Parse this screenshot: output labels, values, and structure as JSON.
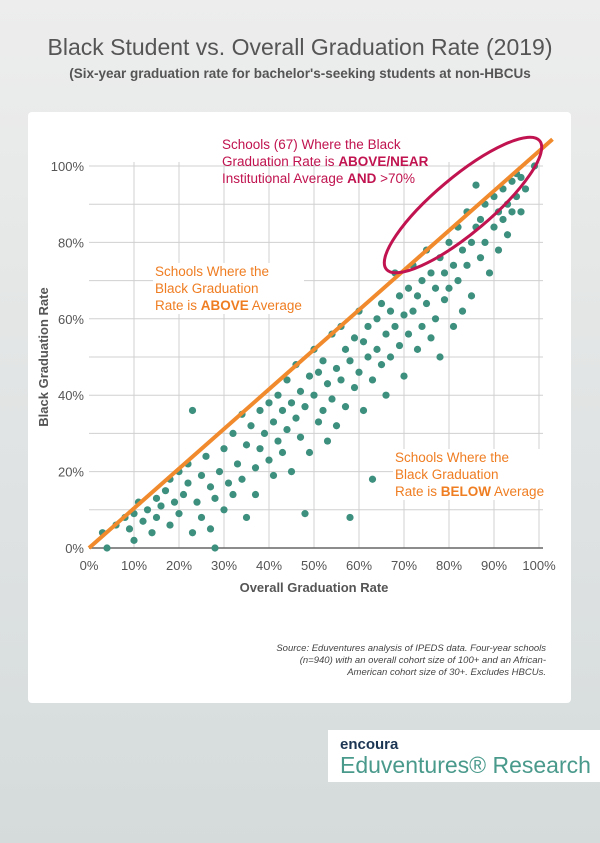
{
  "title": "Black Student vs. Overall Graduation Rate (2019)",
  "subtitle": "(Six-year graduation rate for bachelor's-seeking students at non-HBCUs",
  "annotations": {
    "top": [
      "Schools (67) Where the Black",
      "Graduation Rate is ",
      "ABOVE/NEAR",
      "Institutional Average ",
      "AND",
      " >70%"
    ],
    "above": [
      "Schools Where the",
      "Black Graduation",
      "Rate is ",
      "ABOVE",
      " Average"
    ],
    "below": [
      "Schools Where the",
      "Black Graduation",
      "Rate is ",
      "BELOW",
      " Average"
    ]
  },
  "source": "Source: Eduventures analysis of IPEDS data. Four-year schools (n=940) with an overall cohort size of 100+ and an African-American cohort size of 30+. Excludes HBCUs.",
  "logo": {
    "brand": "encoura",
    "name": "Eduventures® Research"
  },
  "colors": {
    "points": "#3d8f7e",
    "line": "#f08a2c",
    "ellipse": "#c0134f",
    "annotation_orange": "#ef7d22"
  },
  "chart_data": {
    "type": "scatter",
    "xlabel": "Overall Graduation Rate",
    "ylabel": "Black Graduation Rate",
    "xlim": [
      0,
      100
    ],
    "ylim": [
      0,
      100
    ],
    "xticks": [
      "0%",
      "10%",
      "20%",
      "30%",
      "40%",
      "50%",
      "60%",
      "70%",
      "80%",
      "90%",
      "100%"
    ],
    "yticks": [
      "0%",
      "20%",
      "40%",
      "60%",
      "80%",
      "100%"
    ],
    "grid": true,
    "reference_line": "y = x",
    "points": [
      [
        3,
        4
      ],
      [
        4,
        0
      ],
      [
        6,
        6
      ],
      [
        8,
        8
      ],
      [
        9,
        5
      ],
      [
        10,
        2
      ],
      [
        10,
        9
      ],
      [
        11,
        12
      ],
      [
        12,
        7
      ],
      [
        13,
        10
      ],
      [
        14,
        4
      ],
      [
        15,
        13
      ],
      [
        15,
        8
      ],
      [
        16,
        11
      ],
      [
        17,
        15
      ],
      [
        18,
        18
      ],
      [
        18,
        6
      ],
      [
        19,
        12
      ],
      [
        20,
        20
      ],
      [
        20,
        9
      ],
      [
        21,
        14
      ],
      [
        22,
        22
      ],
      [
        22,
        17
      ],
      [
        23,
        36
      ],
      [
        23,
        4
      ],
      [
        24,
        12
      ],
      [
        25,
        19
      ],
      [
        25,
        8
      ],
      [
        26,
        24
      ],
      [
        27,
        16
      ],
      [
        27,
        5
      ],
      [
        28,
        0
      ],
      [
        28,
        13
      ],
      [
        29,
        20
      ],
      [
        30,
        26
      ],
      [
        30,
        10
      ],
      [
        31,
        17
      ],
      [
        32,
        30
      ],
      [
        32,
        14
      ],
      [
        33,
        22
      ],
      [
        34,
        35
      ],
      [
        34,
        18
      ],
      [
        35,
        27
      ],
      [
        35,
        8
      ],
      [
        36,
        32
      ],
      [
        37,
        21
      ],
      [
        37,
        14
      ],
      [
        38,
        36
      ],
      [
        38,
        26
      ],
      [
        39,
        30
      ],
      [
        40,
        38
      ],
      [
        40,
        23
      ],
      [
        41,
        19
      ],
      [
        41,
        33
      ],
      [
        42,
        40
      ],
      [
        42,
        28
      ],
      [
        43,
        25
      ],
      [
        43,
        36
      ],
      [
        44,
        44
      ],
      [
        44,
        31
      ],
      [
        45,
        20
      ],
      [
        45,
        38
      ],
      [
        46,
        34
      ],
      [
        46,
        48
      ],
      [
        47,
        29
      ],
      [
        47,
        41
      ],
      [
        48,
        37
      ],
      [
        48,
        9
      ],
      [
        49,
        45
      ],
      [
        49,
        25
      ],
      [
        50,
        52
      ],
      [
        50,
        40
      ],
      [
        51,
        33
      ],
      [
        51,
        46
      ],
      [
        52,
        49
      ],
      [
        52,
        36
      ],
      [
        53,
        28
      ],
      [
        53,
        43
      ],
      [
        54,
        56
      ],
      [
        54,
        39
      ],
      [
        55,
        47
      ],
      [
        55,
        32
      ],
      [
        56,
        44
      ],
      [
        56,
        58
      ],
      [
        57,
        52
      ],
      [
        57,
        37
      ],
      [
        58,
        49
      ],
      [
        58,
        8
      ],
      [
        59,
        55
      ],
      [
        59,
        42
      ],
      [
        60,
        62
      ],
      [
        60,
        46
      ],
      [
        61,
        54
      ],
      [
        61,
        36
      ],
      [
        62,
        50
      ],
      [
        62,
        58
      ],
      [
        63,
        44
      ],
      [
        63,
        18
      ],
      [
        64,
        60
      ],
      [
        64,
        52
      ],
      [
        65,
        48
      ],
      [
        65,
        64
      ],
      [
        66,
        56
      ],
      [
        66,
        40
      ],
      [
        67,
        62
      ],
      [
        67,
        50
      ],
      [
        68,
        58
      ],
      [
        68,
        72
      ],
      [
        69,
        53
      ],
      [
        69,
        66
      ],
      [
        70,
        61
      ],
      [
        70,
        45
      ],
      [
        71,
        68
      ],
      [
        71,
        56
      ],
      [
        72,
        74
      ],
      [
        72,
        62
      ],
      [
        73,
        52
      ],
      [
        73,
        66
      ],
      [
        74,
        70
      ],
      [
        74,
        58
      ],
      [
        75,
        78
      ],
      [
        75,
        64
      ],
      [
        76,
        55
      ],
      [
        76,
        72
      ],
      [
        77,
        68
      ],
      [
        77,
        60
      ],
      [
        78,
        76
      ],
      [
        78,
        50
      ],
      [
        79,
        65
      ],
      [
        79,
        72
      ],
      [
        80,
        80
      ],
      [
        80,
        68
      ],
      [
        81,
        74
      ],
      [
        81,
        58
      ],
      [
        82,
        84
      ],
      [
        82,
        70
      ],
      [
        83,
        78
      ],
      [
        83,
        62
      ],
      [
        84,
        88
      ],
      [
        84,
        74
      ],
      [
        85,
        80
      ],
      [
        85,
        66
      ],
      [
        86,
        95
      ],
      [
        86,
        84
      ],
      [
        87,
        76
      ],
      [
        87,
        86
      ],
      [
        88,
        90
      ],
      [
        88,
        80
      ],
      [
        89,
        72
      ],
      [
        90,
        92
      ],
      [
        90,
        84
      ],
      [
        91,
        88
      ],
      [
        91,
        78
      ],
      [
        92,
        94
      ],
      [
        92,
        86
      ],
      [
        93,
        90
      ],
      [
        93,
        82
      ],
      [
        94,
        96
      ],
      [
        94,
        88
      ],
      [
        95,
        98
      ],
      [
        95,
        92
      ],
      [
        96,
        97
      ],
      [
        96,
        88
      ],
      [
        97,
        94
      ],
      [
        99,
        100
      ]
    ]
  }
}
